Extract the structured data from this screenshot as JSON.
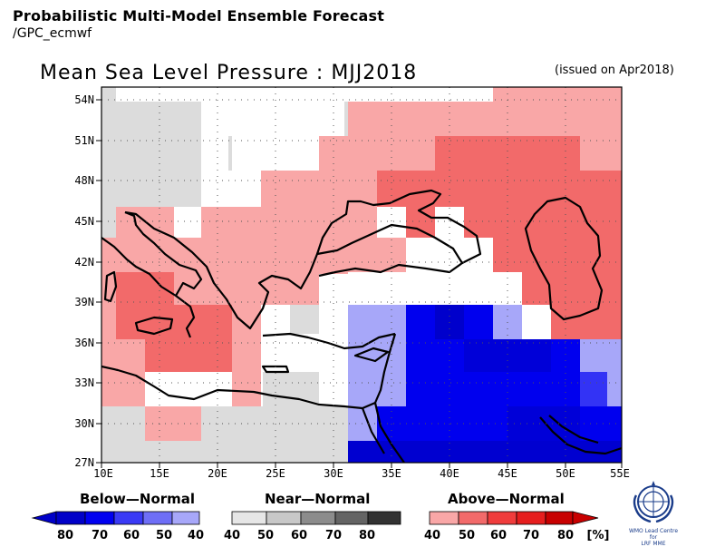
{
  "header": {
    "line1": "Probabilistic Multi-Model Ensemble Forecast",
    "line2": "/GPC_ecmwf"
  },
  "map": {
    "title": "Mean Sea Level Pressure : MJJ2018",
    "issued": "(issued on Apr2018)",
    "lat_labels": [
      "54N",
      "51N",
      "48N",
      "45N",
      "42N",
      "39N",
      "36N",
      "33N",
      "30N",
      "27N"
    ],
    "lon_labels": [
      "10E",
      "15E",
      "20E",
      "25E",
      "30E",
      "35E",
      "40E",
      "45E",
      "50E",
      "55E"
    ],
    "colors": {
      "white": "#ffffff",
      "grey": "#dcdcdc",
      "pink": "#f9a7a7",
      "red": "#f26a6a",
      "lavender": "#a7a7f9",
      "blue": "#0000ee",
      "darkblue": "#0000cc",
      "medblue": "#3333f5",
      "land_line": "#000000"
    }
  },
  "legend": {
    "below": {
      "title": "Below—Normal",
      "labels": [
        "80",
        "70",
        "60",
        "50",
        "40"
      ],
      "colors": [
        "#0000c8",
        "#0000f0",
        "#3a3af5",
        "#6e6ef6",
        "#a7a7f9"
      ]
    },
    "near": {
      "title": "Near—Normal",
      "labels": [
        "40",
        "50",
        "60",
        "70",
        "80"
      ],
      "colors": [
        "#e6e6e6",
        "#c8c8c8",
        "#8c8c8c",
        "#646464",
        "#323232"
      ]
    },
    "above": {
      "title": "Above—Normal",
      "labels": [
        "40",
        "50",
        "60",
        "70",
        "80",
        "[%]"
      ],
      "colors": [
        "#f9a7a7",
        "#f26a6a",
        "#f03c3c",
        "#e61e1e",
        "#c80000"
      ]
    }
  },
  "logo": {
    "text_line1": "WMO Lead Centre for",
    "text_line2": "LRF MME"
  }
}
